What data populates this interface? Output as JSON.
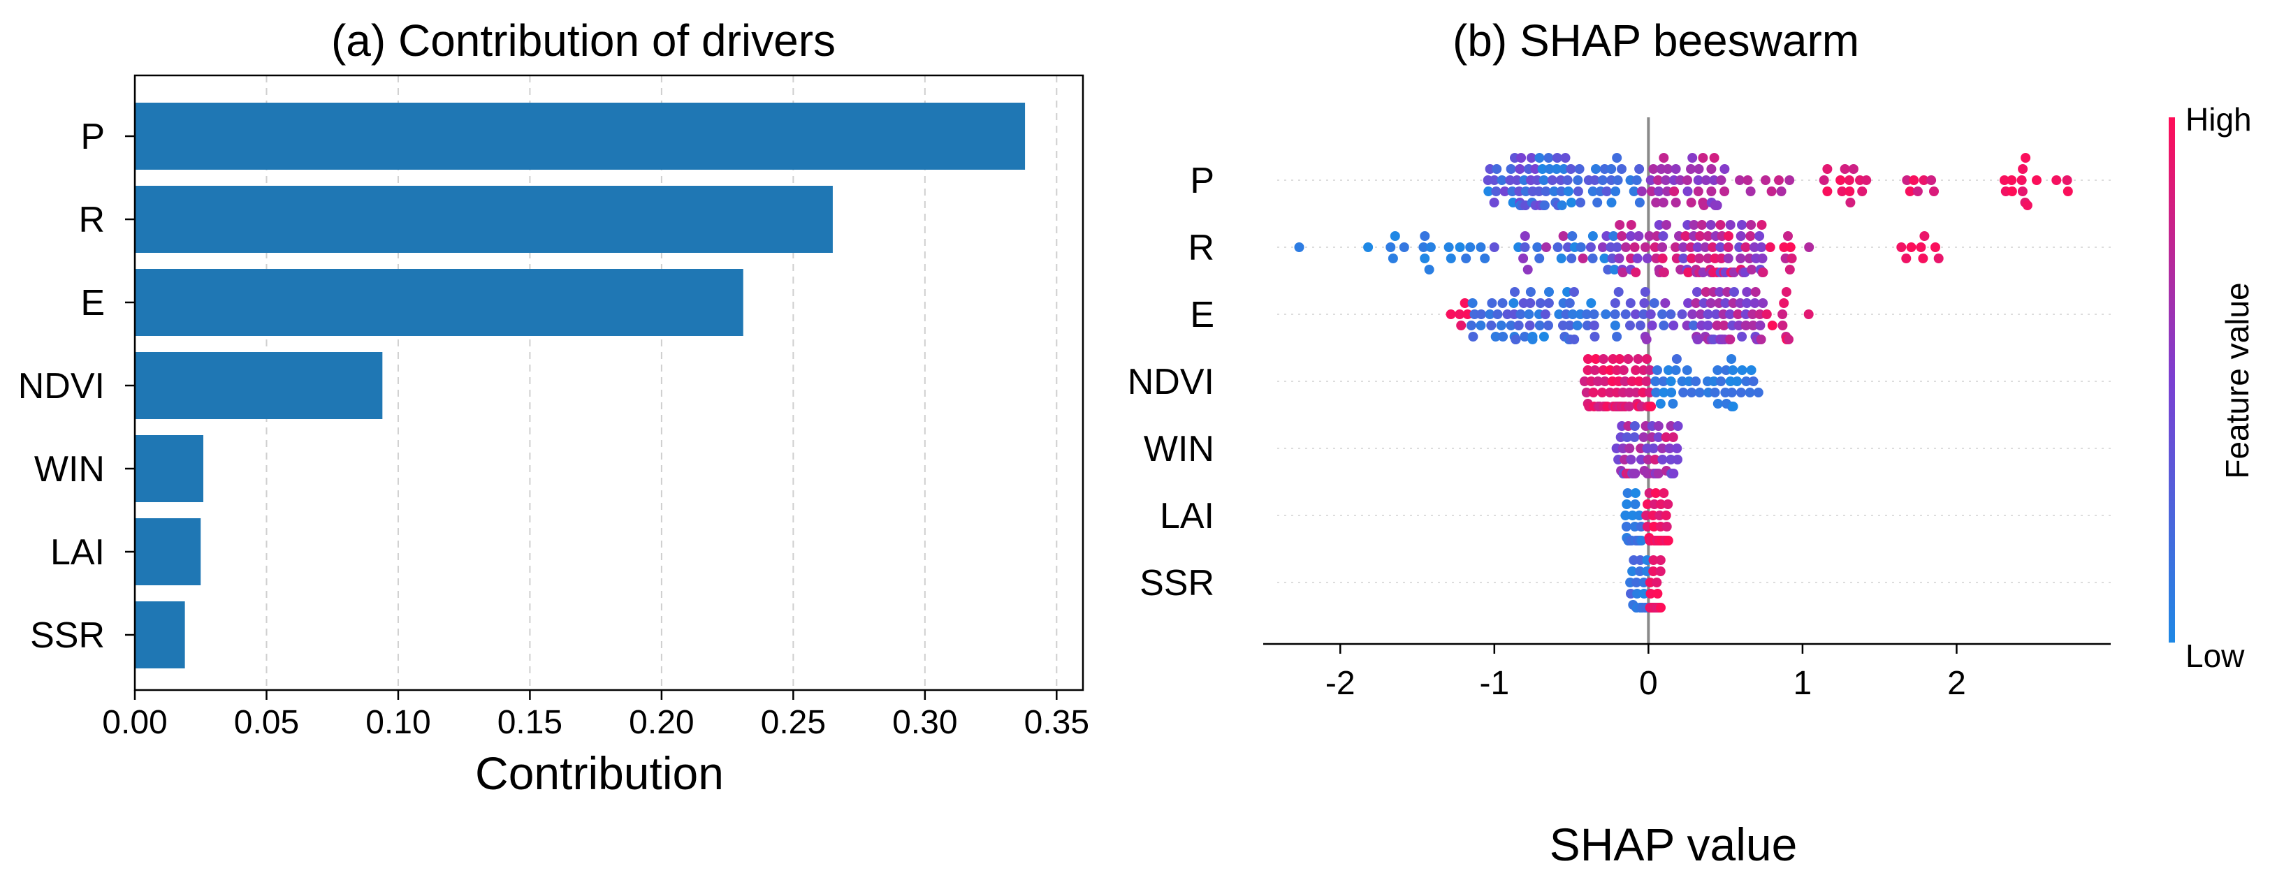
{
  "chart_data": [
    {
      "type": "bar",
      "orientation": "horizontal",
      "title": "(a) Contribution of drivers",
      "xlabel": "Contribution",
      "ylabel": "",
      "xlim": [
        0,
        0.36
      ],
      "xticks": [
        0.0,
        0.05,
        0.1,
        0.15,
        0.2,
        0.25,
        0.3,
        0.35
      ],
      "xtick_labels": [
        "0.00",
        "0.05",
        "0.10",
        "0.15",
        "0.20",
        "0.25",
        "0.30",
        "0.35"
      ],
      "grid": "x dashed",
      "color": "#1f77b4",
      "categories": [
        "P",
        "R",
        "E",
        "NDVI",
        "WIN",
        "LAI",
        "SSR"
      ],
      "values": [
        0.338,
        0.265,
        0.231,
        0.094,
        0.026,
        0.025,
        0.019
      ]
    },
    {
      "type": "scatter",
      "subtype": "shap-beeswarm",
      "title": "(b) SHAP beeswarm",
      "xlabel": "SHAP value",
      "xlim": [
        -2.5,
        3.0
      ],
      "xticks": [
        -2,
        -1,
        0,
        1,
        2
      ],
      "xtick_labels": [
        "-2",
        "-1",
        "0",
        "1",
        "2"
      ],
      "zero_line": 0,
      "features": [
        "P",
        "R",
        "E",
        "NDVI",
        "WIN",
        "LAI",
        "SSR"
      ],
      "colorbar": {
        "title": "Feature value",
        "high_label": "High",
        "low_label": "Low",
        "low_color": "#1e88e5",
        "mid_color": "#7b3fd2",
        "high_color": "#ff0d57"
      },
      "series": [
        {
          "feature": "P",
          "clusters": [
            {
              "lo": -1.05,
              "hi": -0.5,
              "n": 60,
              "c": [
                0.0,
                0.5
              ]
            },
            {
              "lo": -0.5,
              "hi": -0.05,
              "n": 25,
              "c": [
                0.05,
                0.35
              ]
            },
            {
              "lo": -0.05,
              "hi": 0.5,
              "n": 40,
              "c": [
                0.5,
                0.85
              ]
            },
            {
              "lo": 0.5,
              "hi": 1.0,
              "n": 8,
              "c": [
                0.65,
                0.9
              ]
            },
            {
              "lo": 1.0,
              "hi": 1.9,
              "n": 20,
              "c": [
                0.8,
                1.0
              ]
            },
            {
              "lo": 2.2,
              "hi": 2.75,
              "n": 14,
              "c": [
                0.9,
                1.0
              ]
            }
          ]
        },
        {
          "feature": "R",
          "clusters": [
            {
              "lo": -2.3,
              "hi": -1.0,
              "n": 18,
              "c": [
                0.0,
                0.15
              ]
            },
            {
              "lo": -1.0,
              "hi": -0.2,
              "n": 30,
              "c": [
                0.0,
                0.8
              ]
            },
            {
              "lo": -0.2,
              "hi": 0.75,
              "n": 110,
              "c": [
                0.4,
                0.95
              ]
            },
            {
              "lo": 0.75,
              "hi": 1.2,
              "n": 8,
              "c": [
                0.7,
                1.0
              ]
            },
            {
              "lo": 1.55,
              "hi": 1.9,
              "n": 8,
              "c": [
                0.9,
                1.0
              ]
            }
          ]
        },
        {
          "feature": "E",
          "clusters": [
            {
              "lo": -1.3,
              "hi": -1.15,
              "n": 5,
              "c": [
                0.9,
                1.0
              ]
            },
            {
              "lo": -1.15,
              "hi": -0.1,
              "n": 70,
              "c": [
                0.0,
                0.35
              ]
            },
            {
              "lo": -0.1,
              "hi": 0.3,
              "n": 20,
              "c": [
                0.2,
                0.6
              ]
            },
            {
              "lo": 0.3,
              "hi": 0.75,
              "n": 60,
              "c": [
                0.4,
                0.8
              ]
            },
            {
              "lo": 0.75,
              "hi": 1.05,
              "n": 10,
              "c": [
                0.8,
                1.0
              ]
            }
          ]
        },
        {
          "feature": "NDVI",
          "clusters": [
            {
              "lo": -0.42,
              "hi": 0.02,
              "n": 70,
              "c": [
                0.8,
                1.0
              ]
            },
            {
              "lo": 0.02,
              "hi": 0.72,
              "n": 45,
              "c": [
                0.0,
                0.2
              ]
            }
          ]
        },
        {
          "feature": "WIN",
          "clusters": [
            {
              "lo": -0.22,
              "hi": 0.2,
              "n": 60,
              "c": [
                0.3,
                0.9
              ]
            }
          ]
        },
        {
          "feature": "LAI",
          "clusters": [
            {
              "lo": -0.15,
              "hi": -0.02,
              "n": 28,
              "c": [
                0.0,
                0.2
              ]
            },
            {
              "lo": -0.02,
              "hi": 0.13,
              "n": 40,
              "c": [
                0.85,
                1.0
              ]
            }
          ]
        },
        {
          "feature": "SSR",
          "clusters": [
            {
              "lo": -0.12,
              "hi": 0.0,
              "n": 25,
              "c": [
                0.0,
                0.25
              ]
            },
            {
              "lo": 0.0,
              "hi": 0.08,
              "n": 35,
              "c": [
                0.85,
                1.0
              ]
            }
          ]
        }
      ]
    }
  ]
}
